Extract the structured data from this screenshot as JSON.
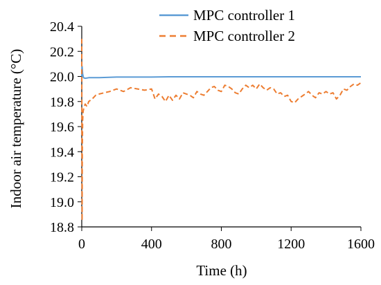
{
  "chart_data": {
    "type": "line",
    "title": "",
    "xlabel": "Time (h)",
    "ylabel": "Indoor air temperature (°C)",
    "xlim": [
      0,
      1600
    ],
    "ylim": [
      18.8,
      20.4
    ],
    "xticks": [
      0,
      400,
      800,
      1200,
      1600
    ],
    "xtick_labels": [
      "0",
      "400",
      "800",
      "1200",
      "1600"
    ],
    "yticks": [
      18.8,
      19.0,
      19.2,
      19.4,
      19.6,
      19.8,
      20.0,
      20.2,
      20.4
    ],
    "ytick_labels": [
      "18.8",
      "19.0",
      "19.2",
      "19.4",
      "19.6",
      "19.8",
      "20.0",
      "20.2",
      "20.4"
    ],
    "grid": false,
    "legend": "top-right",
    "series": [
      {
        "name": "MPC controller 1",
        "color": "#5b9bd5",
        "style": "solid",
        "x": [
          0,
          2,
          5,
          10,
          20,
          40,
          100,
          200,
          300,
          400,
          500,
          600,
          700,
          800,
          900,
          1000,
          1100,
          1200,
          1300,
          1400,
          1500,
          1600
        ],
        "y": [
          20.0,
          20.08,
          20.02,
          19.99,
          19.985,
          19.99,
          19.99,
          19.995,
          19.995,
          19.995,
          19.997,
          19.997,
          19.997,
          19.997,
          19.997,
          19.997,
          19.997,
          19.997,
          19.997,
          19.997,
          19.997,
          19.997
        ]
      },
      {
        "name": "MPC controller 2",
        "color": "#ed7d31",
        "style": "dashed",
        "x": [
          0,
          1,
          2,
          3,
          5,
          8,
          12,
          20,
          30,
          40,
          60,
          80,
          100,
          130,
          160,
          200,
          240,
          280,
          320,
          360,
          400,
          420,
          440,
          460,
          480,
          500,
          520,
          540,
          560,
          580,
          600,
          620,
          640,
          660,
          680,
          700,
          720,
          740,
          760,
          780,
          800,
          820,
          840,
          860,
          880,
          900,
          920,
          940,
          960,
          980,
          1000,
          1020,
          1040,
          1060,
          1080,
          1100,
          1120,
          1140,
          1160,
          1180,
          1200,
          1220,
          1240,
          1260,
          1280,
          1300,
          1320,
          1340,
          1360,
          1380,
          1400,
          1420,
          1440,
          1460,
          1480,
          1500,
          1520,
          1540,
          1560,
          1580,
          1600
        ],
        "y": [
          20.3,
          19.3,
          18.85,
          19.4,
          19.65,
          19.72,
          19.75,
          19.78,
          19.76,
          19.8,
          19.82,
          19.85,
          19.86,
          19.87,
          19.88,
          19.9,
          19.88,
          19.91,
          19.9,
          19.89,
          19.9,
          19.82,
          19.86,
          19.84,
          19.8,
          19.85,
          19.81,
          19.85,
          19.82,
          19.87,
          19.86,
          19.85,
          19.83,
          19.88,
          19.86,
          19.85,
          19.88,
          19.91,
          19.92,
          19.89,
          19.88,
          19.93,
          19.92,
          19.9,
          19.87,
          19.86,
          19.9,
          19.93,
          19.91,
          19.93,
          19.9,
          19.94,
          19.91,
          19.89,
          19.91,
          19.9,
          19.86,
          19.87,
          19.84,
          19.85,
          19.8,
          19.79,
          19.82,
          19.84,
          19.86,
          19.88,
          19.85,
          19.83,
          19.87,
          19.86,
          19.88,
          19.86,
          19.87,
          19.82,
          19.85,
          19.9,
          19.89,
          19.92,
          19.94,
          19.93,
          19.95
        ]
      }
    ]
  }
}
